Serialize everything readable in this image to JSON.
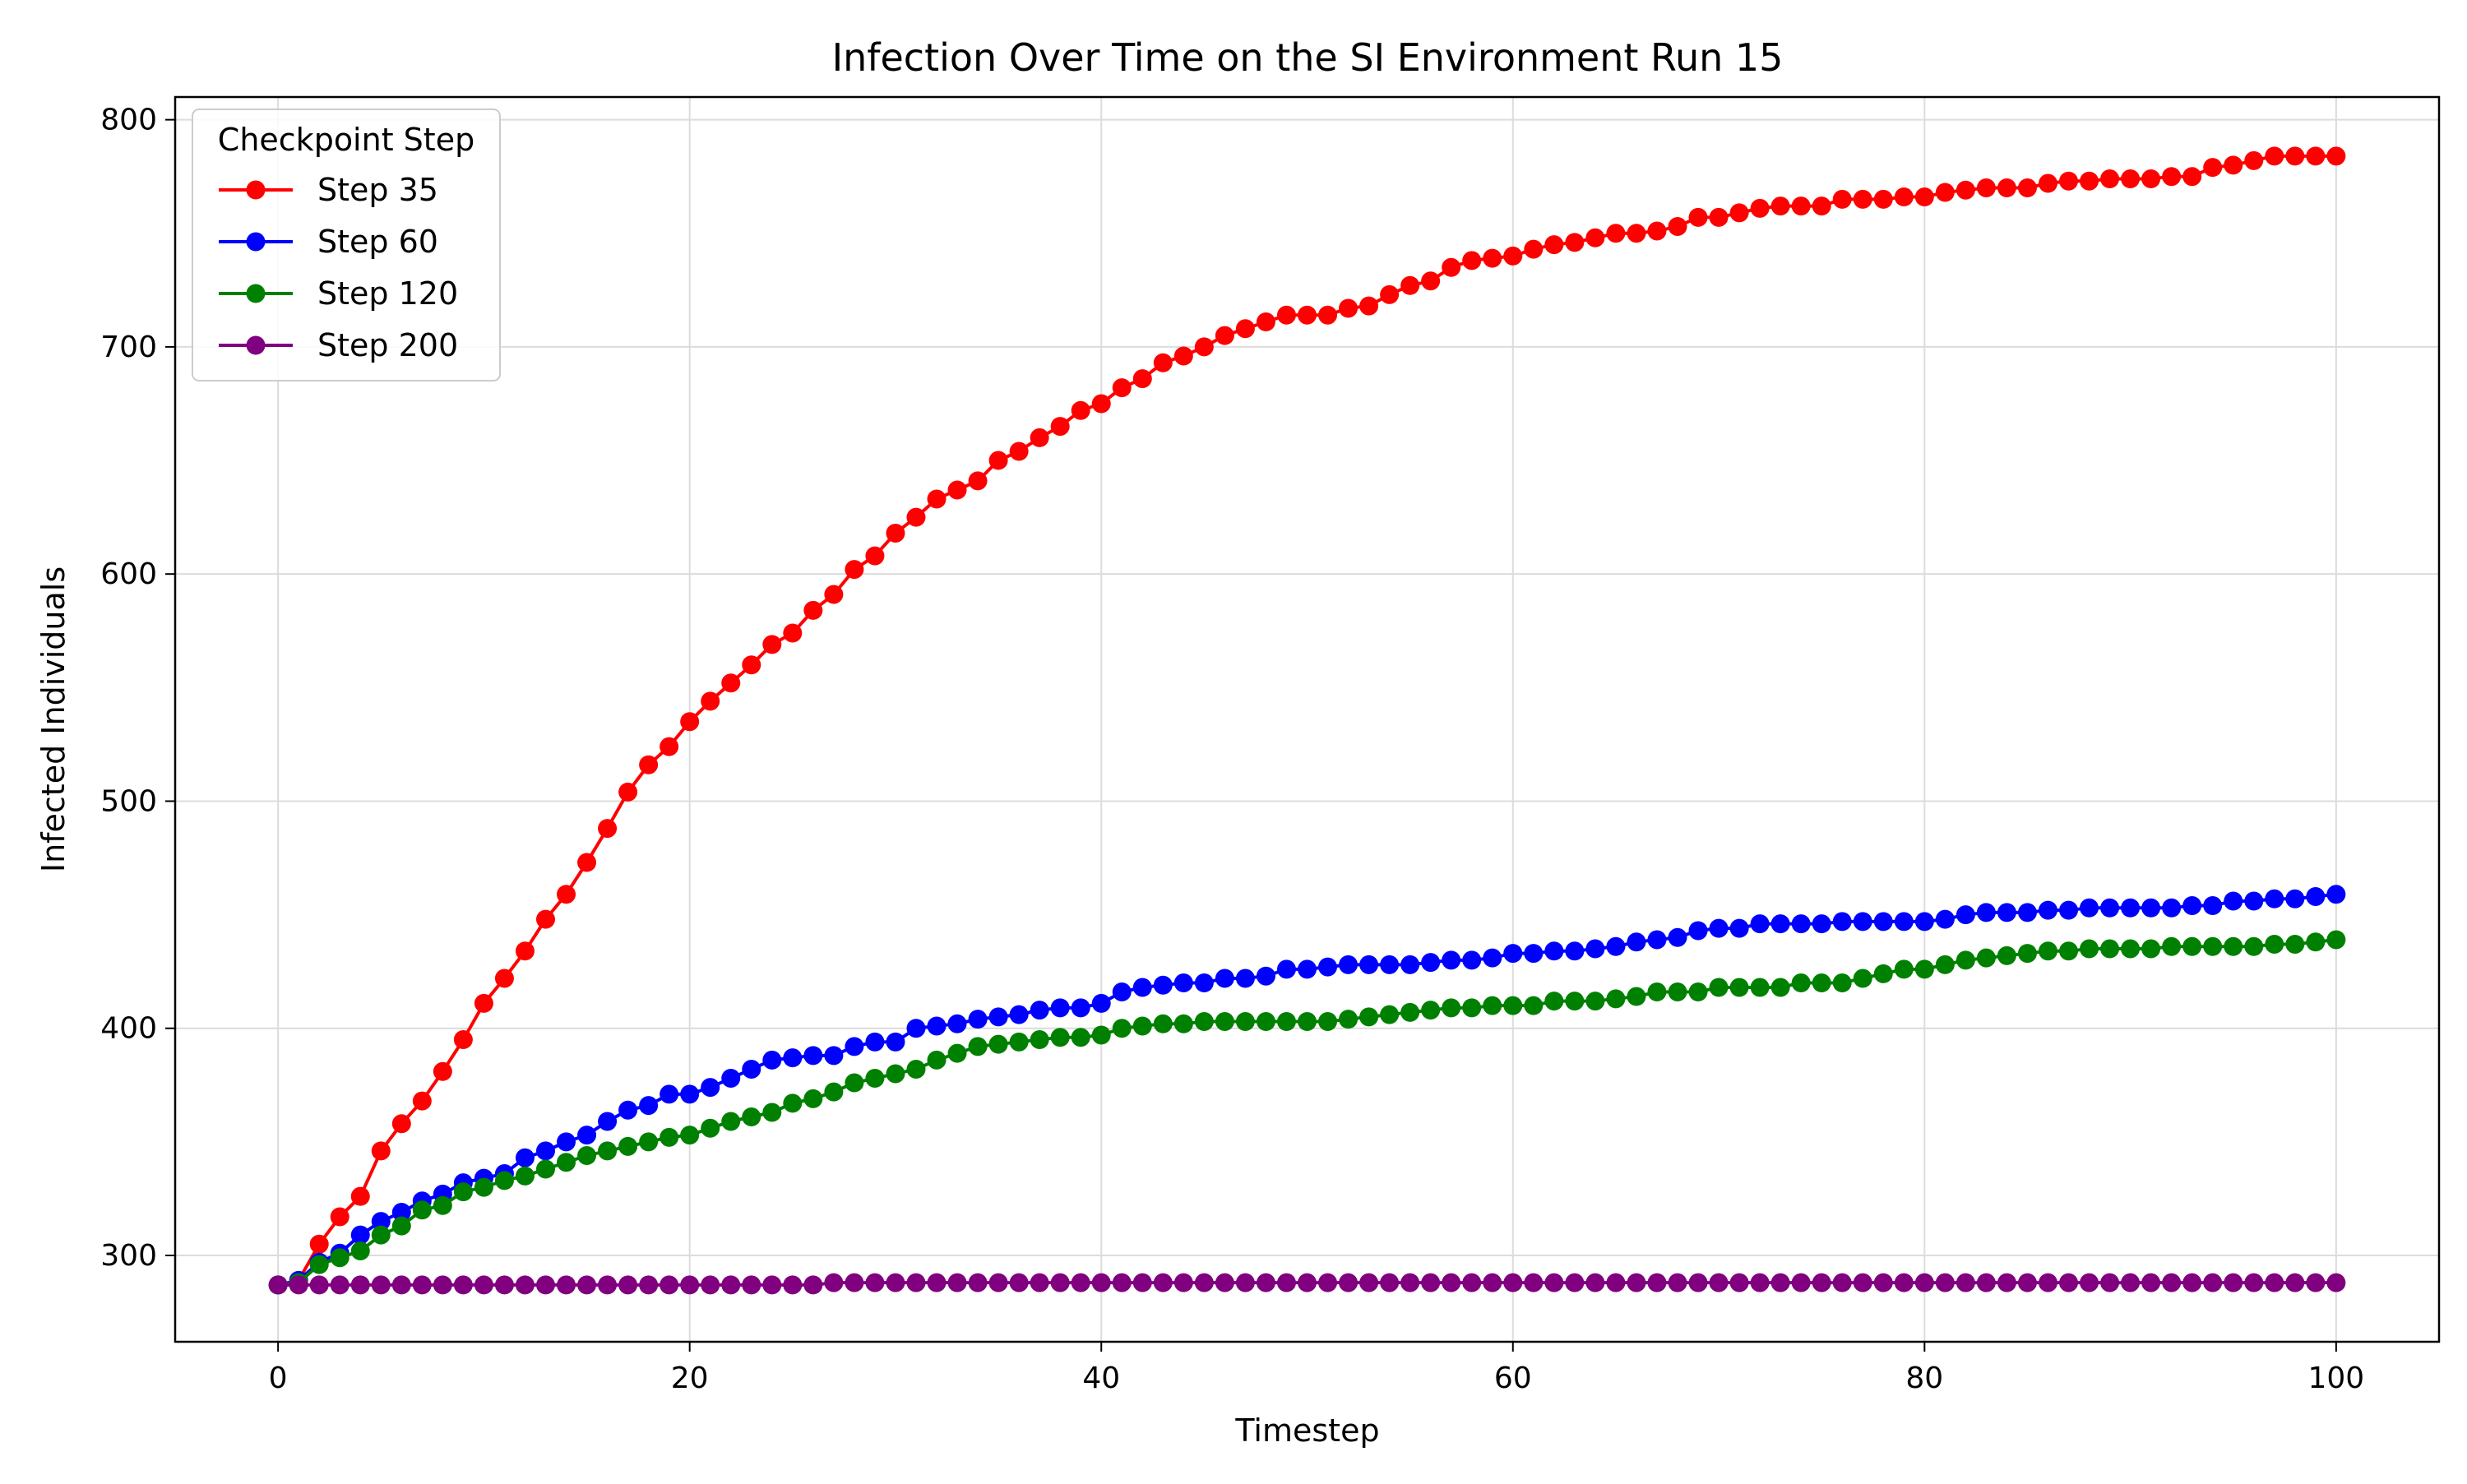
{
  "chart_data": {
    "type": "line",
    "title": "Infection Over Time on the SI Environment Run 15",
    "xlabel": "Timestep",
    "ylabel": "Infected Individuals",
    "xlim": [
      -5,
      105
    ],
    "ylim": [
      262,
      810
    ],
    "xticks": [
      0,
      20,
      40,
      60,
      80,
      100
    ],
    "yticks": [
      300,
      400,
      500,
      600,
      700,
      800
    ],
    "grid": true,
    "legend": {
      "title": "Checkpoint Step",
      "position": "top-left"
    },
    "x": [
      0,
      1,
      2,
      3,
      4,
      5,
      6,
      7,
      8,
      9,
      10,
      11,
      12,
      13,
      14,
      15,
      16,
      17,
      18,
      19,
      20,
      21,
      22,
      23,
      24,
      25,
      26,
      27,
      28,
      29,
      30,
      31,
      32,
      33,
      34,
      35,
      36,
      37,
      38,
      39,
      40,
      41,
      42,
      43,
      44,
      45,
      46,
      47,
      48,
      49,
      50,
      51,
      52,
      53,
      54,
      55,
      56,
      57,
      58,
      59,
      60,
      61,
      62,
      63,
      64,
      65,
      66,
      67,
      68,
      69,
      70,
      71,
      72,
      73,
      74,
      75,
      76,
      77,
      78,
      79,
      80,
      81,
      82,
      83,
      84,
      85,
      86,
      87,
      88,
      89,
      90,
      91,
      92,
      93,
      94,
      95,
      96,
      97,
      98,
      99,
      100
    ],
    "series": [
      {
        "name": "Step 35",
        "color": "#ff0000",
        "values": [
          287,
          289,
          305,
          317,
          326,
          346,
          358,
          368,
          381,
          395,
          411,
          422,
          434,
          448,
          459,
          473,
          488,
          504,
          516,
          524,
          535,
          544,
          552,
          560,
          569,
          574,
          584,
          591,
          602,
          608,
          618,
          625,
          633,
          637,
          641,
          650,
          654,
          660,
          665,
          672,
          675,
          682,
          686,
          693,
          696,
          700,
          705,
          708,
          711,
          714,
          714,
          714,
          717,
          718,
          723,
          727,
          729,
          735,
          738,
          739,
          740,
          743,
          745,
          746,
          748,
          750,
          750,
          751,
          753,
          757,
          757,
          759,
          761,
          762,
          762,
          762,
          765,
          765,
          765,
          766,
          766,
          768,
          769,
          770,
          770,
          770,
          772,
          773,
          773,
          774,
          774,
          774,
          775,
          775,
          779,
          780,
          782,
          784,
          784,
          784,
          784
        ]
      },
      {
        "name": "Step 60",
        "color": "#0000ff",
        "values": [
          287,
          289,
          297,
          301,
          309,
          315,
          319,
          324,
          327,
          332,
          334,
          336,
          343,
          346,
          350,
          353,
          359,
          364,
          366,
          371,
          371,
          374,
          378,
          382,
          386,
          387,
          388,
          388,
          392,
          394,
          394,
          400,
          401,
          402,
          404,
          405,
          406,
          408,
          409,
          409,
          411,
          416,
          418,
          419,
          420,
          420,
          422,
          422,
          423,
          426,
          426,
          427,
          428,
          428,
          428,
          428,
          429,
          430,
          430,
          431,
          433,
          433,
          434,
          434,
          435,
          436,
          438,
          439,
          440,
          443,
          444,
          444,
          446,
          446,
          446,
          446,
          447,
          447,
          447,
          447,
          447,
          448,
          450,
          451,
          451,
          451,
          452,
          452,
          453,
          453,
          453,
          453,
          453,
          454,
          454,
          456,
          456,
          457,
          457,
          458,
          459
        ]
      },
      {
        "name": "Step 120",
        "color": "#008000",
        "values": [
          287,
          288,
          296,
          299,
          302,
          309,
          313,
          320,
          322,
          328,
          330,
          333,
          335,
          338,
          341,
          344,
          346,
          348,
          350,
          352,
          353,
          356,
          359,
          361,
          363,
          367,
          369,
          372,
          376,
          378,
          380,
          382,
          386,
          389,
          392,
          393,
          394,
          395,
          396,
          396,
          397,
          400,
          401,
          402,
          402,
          403,
          403,
          403,
          403,
          403,
          403,
          403,
          404,
          405,
          406,
          407,
          408,
          409,
          409,
          410,
          410,
          410,
          412,
          412,
          412,
          413,
          414,
          416,
          416,
          416,
          418,
          418,
          418,
          418,
          420,
          420,
          420,
          422,
          424,
          426,
          426,
          428,
          430,
          431,
          432,
          433,
          434,
          434,
          435,
          435,
          435,
          435,
          436,
          436,
          436,
          436,
          436,
          437,
          437,
          438,
          439
        ]
      },
      {
        "name": "Step 200",
        "color": "#800080",
        "values": [
          287,
          287,
          287,
          287,
          287,
          287,
          287,
          287,
          287,
          287,
          287,
          287,
          287,
          287,
          287,
          287,
          287,
          287,
          287,
          287,
          287,
          287,
          287,
          287,
          287,
          287,
          287,
          288,
          288,
          288,
          288,
          288,
          288,
          288,
          288,
          288,
          288,
          288,
          288,
          288,
          288,
          288,
          288,
          288,
          288,
          288,
          288,
          288,
          288,
          288,
          288,
          288,
          288,
          288,
          288,
          288,
          288,
          288,
          288,
          288,
          288,
          288,
          288,
          288,
          288,
          288,
          288,
          288,
          288,
          288,
          288,
          288,
          288,
          288,
          288,
          288,
          288,
          288,
          288,
          288,
          288,
          288,
          288,
          288,
          288,
          288,
          288,
          288,
          288,
          288,
          288,
          288,
          288,
          288,
          288,
          288,
          288,
          288,
          288,
          288,
          288
        ]
      }
    ]
  }
}
